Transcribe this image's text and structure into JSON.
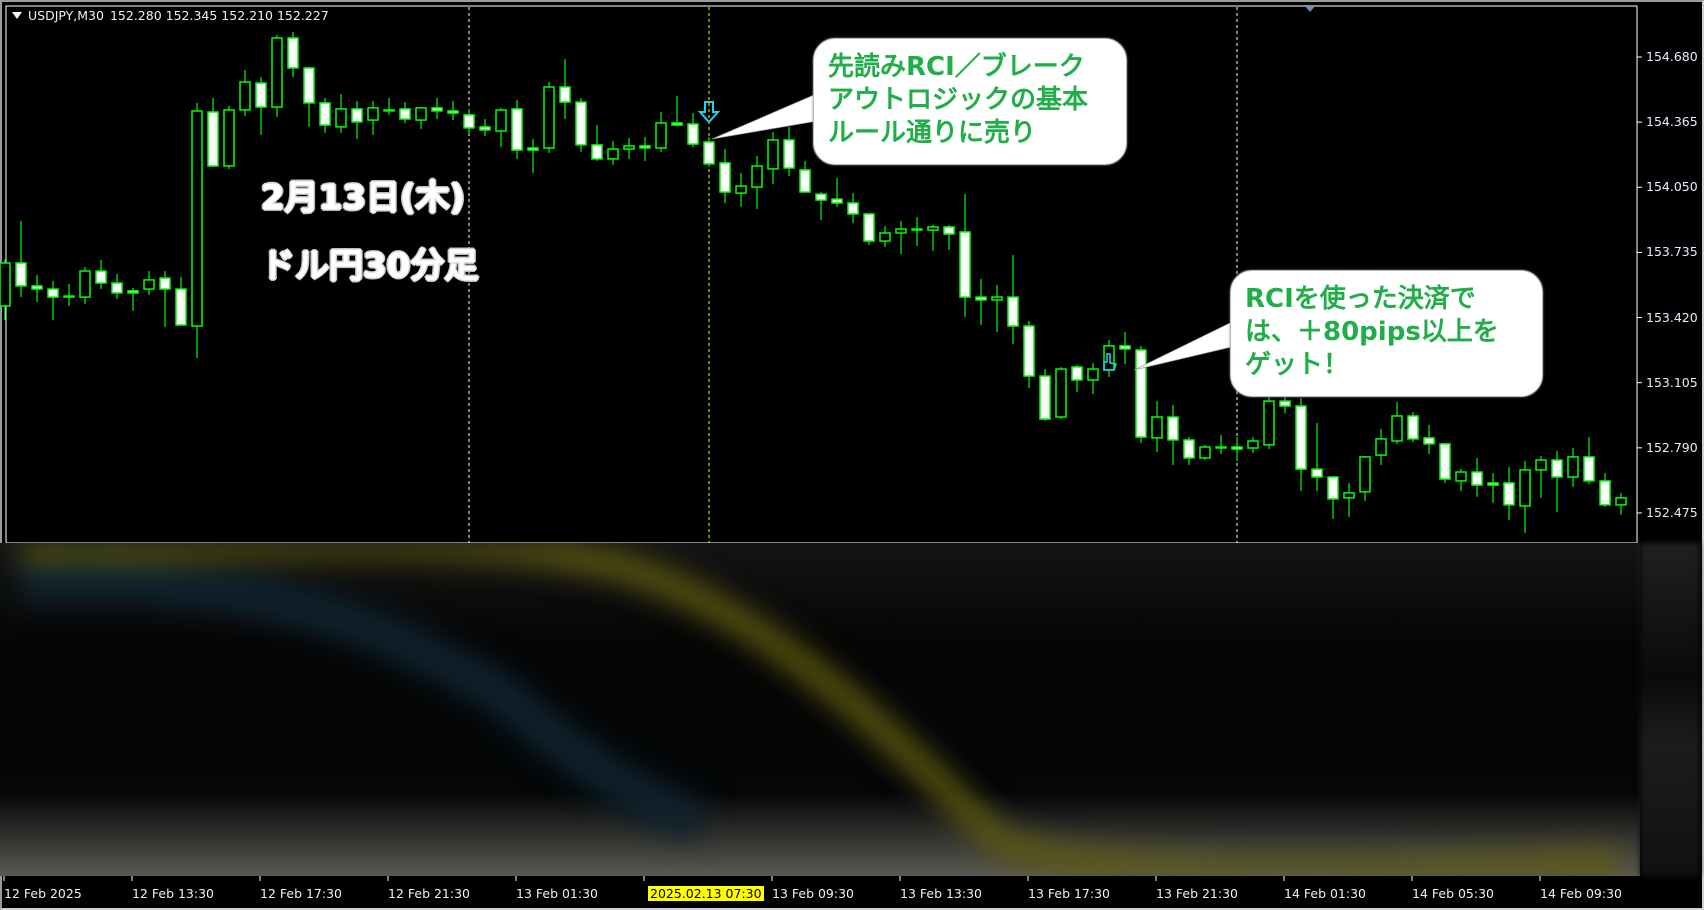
{
  "header": {
    "symbol": "USDJPY,M30",
    "values": "152.280 152.345 152.210 152.227"
  },
  "annotations": {
    "date_label": "2月13日(木)",
    "timeframe_label": "ドル円30分足",
    "bubble_sell": [
      "先読みRCI／ブレーク",
      "アウトロジックの基本",
      "ルール通りに売り"
    ],
    "bubble_exit": [
      "RCIを使った決済で",
      "は、＋80pips以上を",
      "ゲット！"
    ]
  },
  "crosshair_time_label": "2025.02.13 07:30",
  "colors": {
    "candle_outline": "#00ff00",
    "bear_fill": "#ffffff",
    "bull_fill": "#000000",
    "bubble_text": "#1fae48",
    "crosshair": "#ffff00",
    "sell_arrow": "#22d3ee"
  },
  "icons": {
    "sell_signal": "down-arrow-icon",
    "exit_signal": "thumbs-up-icon",
    "menu": "triangle-down-icon"
  },
  "chart_data": {
    "type": "candlestick",
    "symbol": "USDJPY",
    "timeframe": "M30",
    "first_bar": "12 Feb 2025 09:30",
    "ylim": [
      152.4,
      154.82
    ],
    "y_ticks": [
      "154.680",
      "154.365",
      "154.050",
      "153.735",
      "153.420",
      "153.105",
      "152.790",
      "152.475"
    ],
    "x_ticks": [
      "12 Feb 2025",
      "12 Feb 13:30",
      "12 Feb 17:30",
      "12 Feb 21:30",
      "13 Feb 01:30",
      null,
      "13 Feb 09:30",
      "13 Feb 13:30",
      "13 Feb 17:30",
      "13 Feb 21:30",
      "14 Feb 01:30",
      "14 Feb 05:30",
      "14 Feb 09:30"
    ],
    "day_separators": [
      "13 Feb 00:00",
      "14 Feb 00:00"
    ],
    "sell_signal_bar_time": "13 Feb 07:30",
    "exit_signal_bar_time": "13 Feb 20:00",
    "ohlc_fields": [
      "open",
      "high",
      "low",
      "close"
    ],
    "ohlc": [
      [
        153.476,
        153.7,
        153.408,
        153.684
      ],
      [
        153.684,
        153.887,
        153.519,
        153.573
      ],
      [
        153.573,
        153.626,
        153.495,
        153.558
      ],
      [
        153.558,
        153.597,
        153.408,
        153.519
      ],
      [
        153.524,
        153.582,
        153.476,
        153.524
      ],
      [
        153.519,
        153.664,
        153.486,
        153.645
      ],
      [
        153.645,
        153.698,
        153.558,
        153.587
      ],
      [
        153.587,
        153.631,
        153.51,
        153.539
      ],
      [
        153.549,
        153.563,
        153.452,
        153.539
      ],
      [
        153.558,
        153.645,
        153.529,
        153.602
      ],
      [
        153.611,
        153.645,
        153.374,
        153.558
      ],
      [
        153.558,
        153.616,
        153.384,
        153.384
      ],
      [
        153.379,
        154.458,
        153.224,
        154.419
      ],
      [
        154.414,
        154.482,
        154.148,
        154.153
      ],
      [
        154.153,
        154.443,
        154.138,
        154.424
      ],
      [
        154.424,
        154.617,
        154.395,
        154.559
      ],
      [
        154.554,
        154.583,
        154.303,
        154.438
      ],
      [
        154.438,
        154.786,
        154.39,
        154.772
      ],
      [
        154.772,
        154.801,
        154.583,
        154.627
      ],
      [
        154.627,
        154.632,
        154.342,
        154.458
      ],
      [
        154.458,
        154.482,
        154.313,
        154.351
      ],
      [
        154.342,
        154.501,
        154.313,
        154.429
      ],
      [
        154.429,
        154.467,
        154.283,
        154.366
      ],
      [
        154.375,
        154.467,
        154.303,
        154.434
      ],
      [
        154.424,
        154.482,
        154.4,
        154.424
      ],
      [
        154.429,
        154.462,
        154.361,
        154.38
      ],
      [
        154.375,
        154.434,
        154.332,
        154.434
      ],
      [
        154.434,
        154.482,
        154.38,
        154.419
      ],
      [
        154.419,
        154.467,
        154.375,
        154.409
      ],
      [
        154.4,
        154.429,
        154.308,
        154.337
      ],
      [
        154.342,
        154.38,
        154.298,
        154.327
      ],
      [
        154.322,
        154.434,
        154.245,
        154.424
      ],
      [
        154.429,
        154.472,
        154.187,
        154.23
      ],
      [
        154.24,
        154.283,
        154.119,
        154.23
      ],
      [
        154.24,
        154.559,
        154.216,
        154.535
      ],
      [
        154.535,
        154.67,
        154.38,
        154.462
      ],
      [
        154.462,
        154.482,
        154.221,
        154.255
      ],
      [
        154.255,
        154.351,
        154.177,
        154.187
      ],
      [
        154.187,
        154.274,
        154.158,
        154.235
      ],
      [
        154.235,
        154.288,
        154.187,
        154.25
      ],
      [
        154.25,
        154.293,
        154.177,
        154.24
      ],
      [
        154.24,
        154.414,
        154.221,
        154.361
      ],
      [
        154.361,
        154.491,
        154.346,
        154.351
      ],
      [
        154.356,
        154.409,
        154.245,
        154.259
      ],
      [
        154.269,
        154.293,
        154.148,
        154.163
      ],
      [
        154.168,
        154.235,
        153.974,
        154.027
      ],
      [
        154.022,
        154.119,
        153.955,
        154.056
      ],
      [
        154.051,
        154.201,
        153.945,
        154.153
      ],
      [
        154.139,
        154.317,
        154.066,
        154.279
      ],
      [
        154.279,
        154.342,
        154.104,
        154.143
      ],
      [
        154.134,
        154.177,
        154.022,
        154.027
      ],
      [
        154.017,
        154.027,
        153.892,
        153.988
      ],
      [
        153.993,
        154.095,
        153.955,
        153.974
      ],
      [
        153.974,
        154.022,
        153.877,
        153.921
      ],
      [
        153.921,
        153.921,
        153.771,
        153.79
      ],
      [
        153.79,
        153.863,
        153.761,
        153.829
      ],
      [
        153.829,
        153.887,
        153.727,
        153.848
      ],
      [
        153.848,
        153.906,
        153.766,
        153.848
      ],
      [
        153.843,
        153.868,
        153.742,
        153.858
      ],
      [
        153.858,
        153.868,
        153.747,
        153.824
      ],
      [
        153.834,
        154.017,
        153.423,
        153.519
      ],
      [
        153.519,
        153.607,
        153.384,
        153.505
      ],
      [
        153.505,
        153.578,
        153.35,
        153.519
      ],
      [
        153.519,
        153.722,
        153.292,
        153.379
      ],
      [
        153.379,
        153.403,
        153.079,
        153.137
      ],
      [
        153.137,
        153.171,
        152.92,
        152.929
      ],
      [
        152.939,
        153.181,
        152.929,
        153.171
      ],
      [
        153.181,
        153.191,
        153.06,
        153.118
      ],
      [
        153.118,
        153.2,
        153.05,
        153.171
      ],
      [
        153.167,
        153.311,
        153.133,
        153.283
      ],
      [
        153.283,
        153.35,
        153.196,
        153.268
      ],
      [
        153.263,
        153.283,
        152.813,
        152.842
      ],
      [
        152.838,
        153.016,
        152.77,
        152.939
      ],
      [
        152.939,
        152.997,
        152.707,
        152.828
      ],
      [
        152.828,
        152.842,
        152.707,
        152.741
      ],
      [
        152.741,
        152.804,
        152.731,
        152.794
      ],
      [
        152.794,
        152.852,
        152.76,
        152.794
      ],
      [
        152.794,
        152.842,
        152.726,
        152.784
      ],
      [
        152.789,
        152.842,
        152.765,
        152.823
      ],
      [
        152.804,
        153.055,
        152.784,
        153.016
      ],
      [
        153.016,
        153.055,
        152.958,
        152.992
      ],
      [
        152.992,
        153.03,
        152.581,
        152.687
      ],
      [
        152.687,
        152.91,
        152.581,
        152.649
      ],
      [
        152.649,
        152.649,
        152.446,
        152.543
      ],
      [
        152.548,
        152.62,
        152.456,
        152.572
      ],
      [
        152.577,
        152.751,
        152.533,
        152.746
      ],
      [
        152.755,
        152.881,
        152.707,
        152.833
      ],
      [
        152.823,
        153.011,
        152.809,
        152.944
      ],
      [
        152.944,
        152.963,
        152.818,
        152.833
      ],
      [
        152.838,
        152.901,
        152.76,
        152.809
      ],
      [
        152.809,
        152.813,
        152.62,
        152.639
      ],
      [
        152.63,
        152.687,
        152.581,
        152.673
      ],
      [
        152.673,
        152.741,
        152.553,
        152.61
      ],
      [
        152.62,
        152.668,
        152.524,
        152.61
      ],
      [
        152.62,
        152.697,
        152.441,
        152.514
      ],
      [
        152.509,
        152.726,
        152.378,
        152.683
      ],
      [
        152.683,
        152.751,
        152.548,
        152.731
      ],
      [
        152.731,
        152.775,
        152.48,
        152.649
      ],
      [
        152.649,
        152.789,
        152.601,
        152.746
      ],
      [
        152.746,
        152.842,
        152.615,
        152.63
      ],
      [
        152.63,
        152.668,
        152.504,
        152.514
      ],
      [
        152.514,
        152.572,
        152.466,
        152.548
      ]
    ]
  }
}
